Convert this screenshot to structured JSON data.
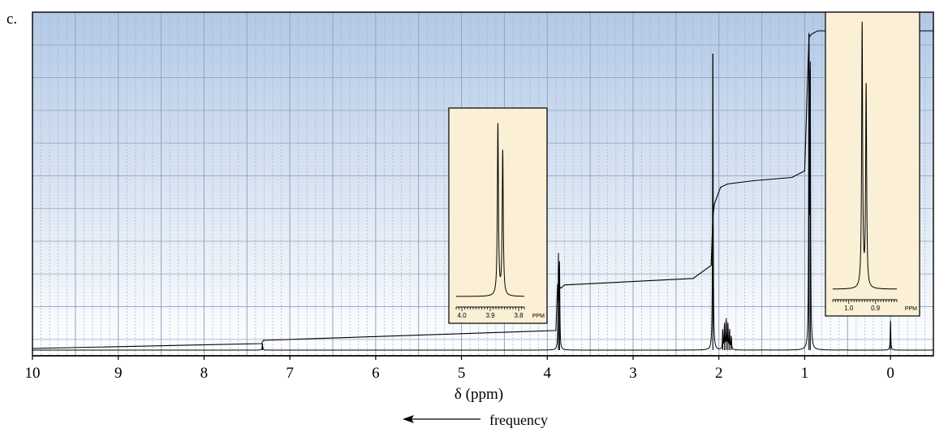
{
  "panel_label": "c.",
  "colors": {
    "plot_gradient_top": "#b3c9e6",
    "plot_gradient_bottom": "#ffffff",
    "grid_major": "#8ea5c3",
    "grid_minor": "#9fb1c9",
    "inset_background": "#fbefd5",
    "trace": "#000000"
  },
  "chart_data": {
    "type": "line",
    "xlabel": "δ (ppm)",
    "x_reversed": true,
    "xlim": [
      10,
      -0.5
    ],
    "xticks": [
      10,
      9,
      8,
      7,
      6,
      5,
      4,
      3,
      2,
      1,
      0
    ],
    "xtick_labels": [
      "10",
      "9",
      "8",
      "7",
      "6",
      "5",
      "4",
      "3",
      "2",
      "1",
      "0"
    ],
    "ylim": [
      0,
      1
    ],
    "grid": true,
    "frequency_label": "frequency",
    "frequency_arrow_direction": "left",
    "spectrum_peaks": [
      {
        "center": 3.87,
        "height": 0.28,
        "width": 0.004
      },
      {
        "center": 3.857,
        "height": 0.25,
        "width": 0.004
      },
      {
        "center": 2.07,
        "height": 0.91,
        "width": 0.004
      },
      {
        "center": 1.955,
        "height": 0.06,
        "width": 0.004
      },
      {
        "center": 1.935,
        "height": 0.08,
        "width": 0.004
      },
      {
        "center": 1.915,
        "height": 0.09,
        "width": 0.004
      },
      {
        "center": 1.895,
        "height": 0.08,
        "width": 0.004
      },
      {
        "center": 1.875,
        "height": 0.06,
        "width": 0.004
      },
      {
        "center": 1.855,
        "height": 0.04,
        "width": 0.004
      },
      {
        "center": 0.95,
        "height": 0.97,
        "width": 0.004
      },
      {
        "center": 0.935,
        "height": 0.86,
        "width": 0.004
      },
      {
        "center": 7.32,
        "height": 0.02,
        "width": 0.004
      },
      {
        "center": 0.0,
        "height": 0.09,
        "width": 0.004
      }
    ],
    "integral_curve": {
      "x": [
        10,
        7.33,
        7.31,
        3.9,
        3.88,
        3.84,
        3.8,
        2.3,
        2.09,
        2.07,
        2.05,
        1.98,
        1.9,
        1.6,
        1.15,
        1.0,
        0.97,
        0.95,
        0.92,
        0.85,
        0.4,
        -0.5
      ],
      "y": [
        0.005,
        0.02,
        0.03,
        0.06,
        0.2,
        0.19,
        0.2,
        0.22,
        0.26,
        0.41,
        0.45,
        0.5,
        0.51,
        0.52,
        0.53,
        0.55,
        0.8,
        0.96,
        0.97,
        0.98,
        0.98,
        0.98
      ]
    },
    "insets": [
      {
        "name": "inset-3.9ppm",
        "xlim": [
          4.02,
          3.78
        ],
        "tick_labels": [
          "4.0",
          "3.9",
          "3.8"
        ],
        "tick_values": [
          4.0,
          3.9,
          3.8
        ],
        "unit_label": "PPM",
        "peaks": [
          {
            "center": 3.873,
            "height": 0.95,
            "width": 0.0022
          },
          {
            "center": 3.856,
            "height": 0.8,
            "width": 0.0022
          }
        ]
      },
      {
        "name": "inset-0.9ppm",
        "xlim": [
          1.06,
          0.82
        ],
        "tick_labels": [
          "1.0",
          "0.9"
        ],
        "tick_values": [
          1.0,
          0.9
        ],
        "unit_label": "PPM",
        "peaks": [
          {
            "center": 0.95,
            "height": 0.98,
            "width": 0.0022
          },
          {
            "center": 0.935,
            "height": 0.75,
            "width": 0.0022
          }
        ]
      }
    ]
  }
}
